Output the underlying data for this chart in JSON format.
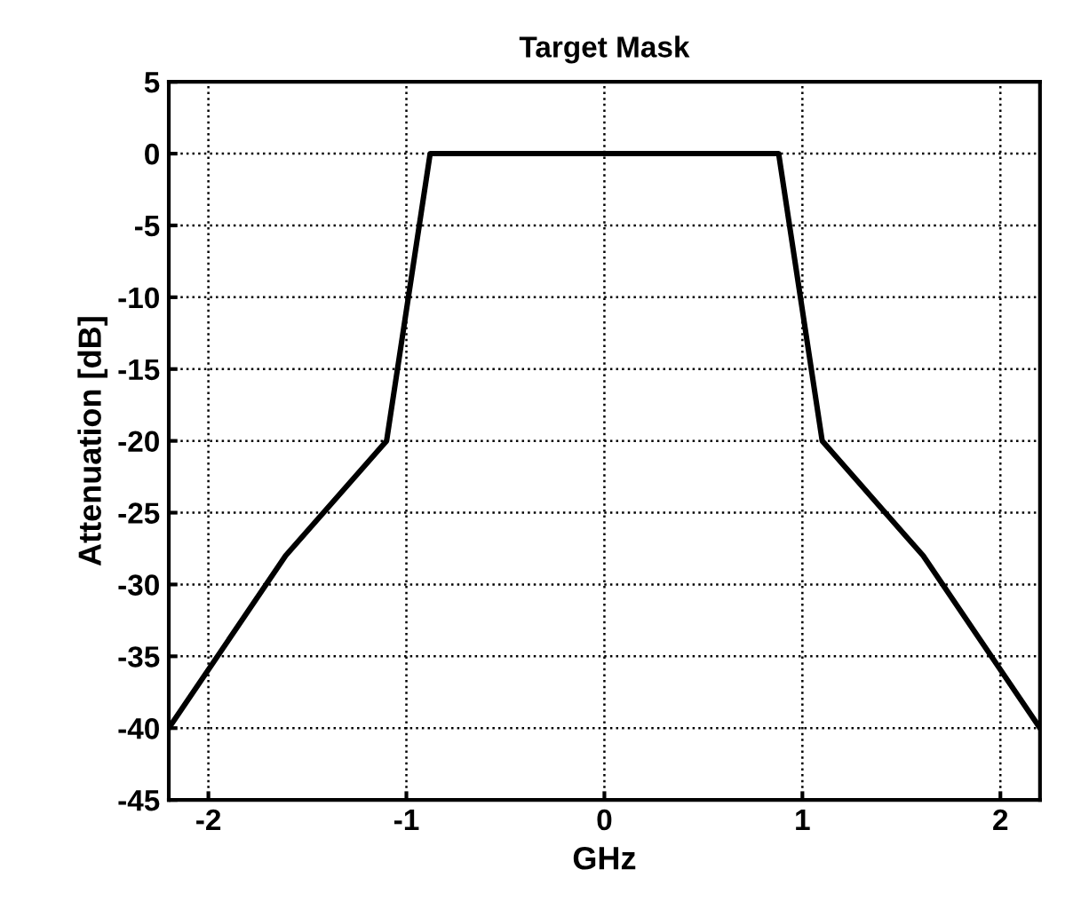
{
  "chart_data": {
    "type": "line",
    "title": "Target Mask",
    "xlabel": "GHz",
    "ylabel": "Attenuation [dB]",
    "x": [
      -2.2,
      -1.61,
      -1.1,
      -0.88,
      0.88,
      1.1,
      1.61,
      2.2
    ],
    "series": [
      {
        "color": "#000000",
        "values": [
          -40,
          -28,
          -20,
          0,
          0,
          -20,
          -28,
          -40
        ]
      }
    ],
    "xlim": [
      -2.2,
      2.2
    ],
    "xticks": [
      -2,
      -1,
      0,
      1,
      2
    ],
    "ylim": [
      -45,
      5
    ],
    "yticks": [
      -45,
      -40,
      -35,
      -30,
      -25,
      -20,
      -15,
      -10,
      -5,
      0,
      5
    ],
    "grid": true,
    "marker": "none",
    "line_style": "solid"
  }
}
